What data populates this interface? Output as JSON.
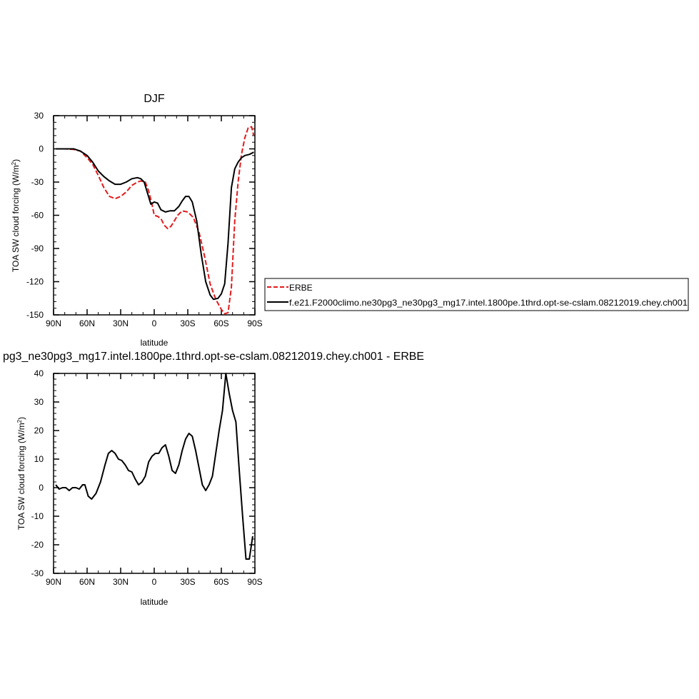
{
  "colors": {
    "erbe": "#e31a1c",
    "model": "#000000",
    "axis": "#000000"
  },
  "chart_data": [
    {
      "type": "line",
      "title": "DJF",
      "xlabel": "latitude",
      "ylabel": "TOA SW cloud forcing (W/m",
      "ylabel_sup": "2",
      "ylabel_close": ")",
      "xlim": [
        90,
        -90
      ],
      "ylim": [
        -150,
        30
      ],
      "xticks": [
        90,
        60,
        30,
        0,
        -30,
        -60,
        -90
      ],
      "xticklabels": [
        "90N",
        "60N",
        "30N",
        "0",
        "30S",
        "60S",
        "90S"
      ],
      "yticks": [
        30,
        0,
        -30,
        -60,
        -90,
        -120,
        -150
      ],
      "yticklabels": [
        "30",
        "0",
        "-30",
        "-60",
        "-90",
        "-120",
        "-150"
      ],
      "legend_position": "right",
      "series": [
        {
          "name": "ERBE",
          "style": "dashed",
          "x": [
            88,
            80,
            72,
            66,
            60,
            55,
            50,
            45,
            40,
            35,
            30,
            25,
            20,
            15,
            12,
            8,
            5,
            2,
            0,
            -3,
            -6,
            -9,
            -12,
            -15,
            -18,
            -21,
            -25,
            -30,
            -35,
            -40,
            -45,
            -50,
            -55,
            -60,
            -63,
            -66,
            -69,
            -72,
            -75,
            -78,
            -81,
            -84,
            -87,
            -89
          ],
          "y": [
            0,
            0,
            -0.5,
            -2,
            -8,
            -14,
            -24,
            -35,
            -43,
            -45,
            -43,
            -39,
            -33,
            -30,
            -29,
            -30,
            -38,
            -50,
            -60,
            -61,
            -63,
            -69,
            -72,
            -70,
            -65,
            -60,
            -56,
            -57,
            -62,
            -75,
            -97,
            -122,
            -136,
            -145,
            -149,
            -148,
            -125,
            -65,
            -30,
            -5,
            10,
            19,
            20,
            12
          ]
        },
        {
          "name": "f.e21.F2000climo.ne30pg3_ne30pg3_mg17.intel.1800pe.1thrd.opt-se-cslam.08212019.chey.ch001",
          "style": "solid",
          "x": [
            88,
            80,
            72,
            66,
            60,
            55,
            50,
            45,
            40,
            35,
            30,
            25,
            20,
            15,
            12,
            9,
            6,
            3,
            0,
            -3,
            -6,
            -10,
            -14,
            -18,
            -22,
            -25,
            -28,
            -31,
            -34,
            -38,
            -42,
            -46,
            -50,
            -53,
            -57,
            -60,
            -63,
            -66,
            -69,
            -72,
            -75,
            -78,
            -81,
            -85,
            -89
          ],
          "y": [
            0,
            0,
            0,
            -2,
            -6,
            -12,
            -20,
            -25,
            -29,
            -32,
            -32,
            -30,
            -27,
            -26,
            -27,
            -30,
            -40,
            -50,
            -48,
            -49,
            -55,
            -57,
            -56,
            -56,
            -52,
            -47,
            -43,
            -43,
            -48,
            -65,
            -95,
            -120,
            -132,
            -136,
            -135,
            -131,
            -122,
            -85,
            -35,
            -18,
            -12,
            -8,
            -6,
            -5,
            -3
          ]
        }
      ]
    },
    {
      "type": "line",
      "title": "pg3_ne30pg3_mg17.intel.1800pe.1thrd.opt-se-cslam.08212019.chey.ch001 - ERBE",
      "xlabel": "latitude",
      "ylabel": "TOA SW cloud forcing (W/m",
      "ylabel_sup": "2",
      "ylabel_close": ")",
      "xlim": [
        90,
        -90
      ],
      "ylim": [
        -30,
        40
      ],
      "xticks": [
        90,
        60,
        30,
        0,
        -30,
        -60,
        -90
      ],
      "xticklabels": [
        "90N",
        "60N",
        "30N",
        "0",
        "30S",
        "60S",
        "90S"
      ],
      "yticks": [
        40,
        30,
        20,
        10,
        0,
        -10,
        -20,
        -30
      ],
      "yticklabels": [
        "40",
        "30",
        "20",
        "10",
        "0",
        "-10",
        "-20",
        "-30"
      ],
      "series": [
        {
          "style": "solid",
          "x": [
            88,
            85,
            82,
            79,
            76,
            73,
            70,
            67,
            64,
            62,
            59,
            56,
            52,
            48,
            44,
            41,
            38,
            35,
            32,
            29,
            26,
            23,
            20,
            17,
            14,
            11,
            8,
            5,
            2,
            -1,
            -4,
            -7,
            -10,
            -13,
            -16,
            -19,
            -22,
            -25,
            -28,
            -31,
            -34,
            -37,
            -40,
            -43,
            -46,
            -49,
            -52,
            -55,
            -58,
            -61,
            -64,
            -67,
            -70,
            -73,
            -76,
            -79,
            -82,
            -85,
            -88
          ],
          "y": [
            1,
            -0.5,
            0,
            0,
            -1,
            0,
            0,
            -0.5,
            1,
            1,
            -3,
            -4,
            -2,
            2,
            8,
            12,
            13,
            12,
            10,
            9.5,
            8,
            6,
            5.5,
            3,
            1,
            2,
            4,
            9,
            11,
            12,
            12,
            14,
            15,
            11,
            6,
            5,
            8,
            13,
            17,
            19,
            18,
            13,
            7,
            1,
            -1,
            1,
            4,
            12,
            20,
            27,
            40,
            33,
            27,
            23,
            6,
            -10,
            -25,
            -25,
            -17
          ]
        }
      ]
    }
  ]
}
